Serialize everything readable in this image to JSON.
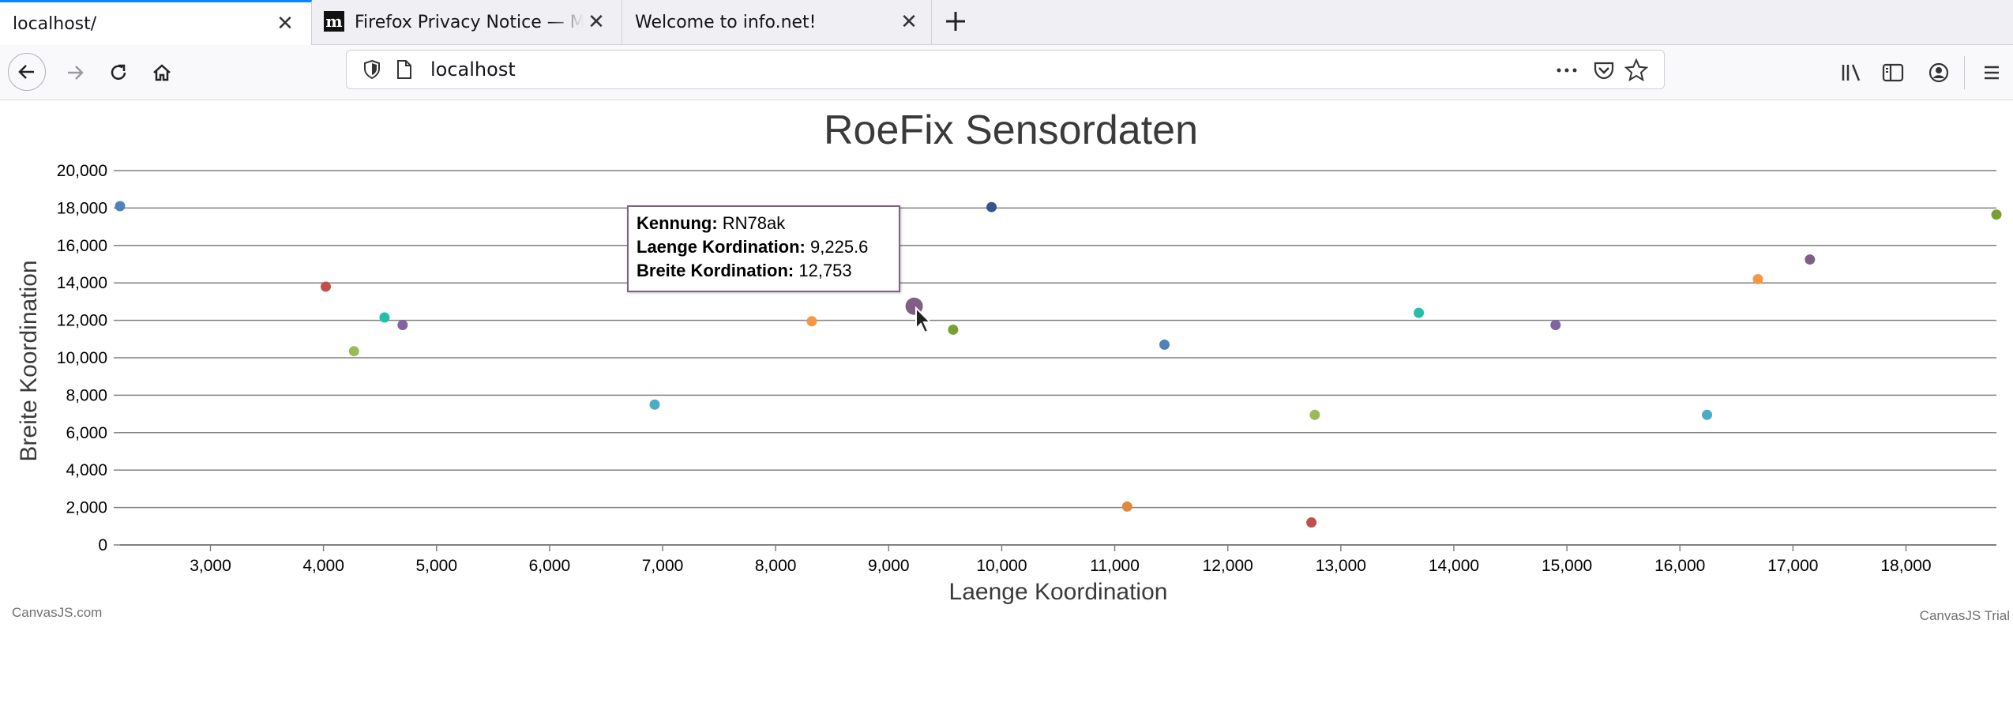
{
  "browser": {
    "tabs": [
      {
        "title": "localhost/",
        "active": true
      },
      {
        "title": "Firefox Privacy Notice — Mozilla",
        "active": false,
        "favicon": "m"
      },
      {
        "title": "Welcome to info.net!",
        "active": false
      }
    ],
    "url": "localhost",
    "icons": [
      "back-arrow-icon",
      "forward-arrow-icon",
      "reload-icon",
      "home-icon",
      "shield-icon",
      "page-icon",
      "more-dots-icon",
      "pocket-icon",
      "star-icon",
      "library-icon",
      "sidebar-icon",
      "account-icon",
      "menu-icon"
    ]
  },
  "chart_data": {
    "type": "scatter",
    "title": "RoeFix Sensordaten",
    "xlabel": "Laenge Koordination",
    "ylabel": "Breite Koordination",
    "xlim": [
      2200,
      18800
    ],
    "ylim": [
      0,
      20000
    ],
    "xticks": [
      "3,000",
      "4,000",
      "5,000",
      "6,000",
      "7,000",
      "8,000",
      "9,000",
      "10,000",
      "11,000",
      "12,000",
      "13,000",
      "14,000",
      "15,000",
      "16,000",
      "17,000",
      "18,000"
    ],
    "xtick_values": [
      3000,
      4000,
      5000,
      6000,
      7000,
      8000,
      9000,
      10000,
      11000,
      12000,
      13000,
      14000,
      15000,
      16000,
      17000,
      18000
    ],
    "yticks": [
      "0",
      "2,000",
      "4,000",
      "6,000",
      "8,000",
      "10,000",
      "12,000",
      "14,000",
      "16,000",
      "18,000",
      "20,000"
    ],
    "ytick_values": [
      0,
      2000,
      4000,
      6000,
      8000,
      10000,
      12000,
      14000,
      16000,
      18000,
      20000
    ],
    "grid": true,
    "points": [
      {
        "x": 2200,
        "y": 18100,
        "color": "#4f81bc"
      },
      {
        "x": 4020,
        "y": 13800,
        "color": "#c0504e"
      },
      {
        "x": 4270,
        "y": 10350,
        "color": "#9bbb58"
      },
      {
        "x": 4540,
        "y": 12150,
        "color": "#23bfaa"
      },
      {
        "x": 4700,
        "y": 11750,
        "color": "#8064a1"
      },
      {
        "x": 6930,
        "y": 7500,
        "color": "#4aacc5"
      },
      {
        "x": 8320,
        "y": 11950,
        "color": "#f79647"
      },
      {
        "x": 9225.6,
        "y": 12753,
        "color": "#7f6084",
        "highlight": true
      },
      {
        "x": 9570,
        "y": 11500,
        "color": "#77a033"
      },
      {
        "x": 9910,
        "y": 18050,
        "color": "#33558b"
      },
      {
        "x": 11110,
        "y": 2050,
        "color": "#e4873e"
      },
      {
        "x": 11440,
        "y": 10700,
        "color": "#4f81bc"
      },
      {
        "x": 12740,
        "y": 1200,
        "color": "#c0504e"
      },
      {
        "x": 12770,
        "y": 6950,
        "color": "#9bbb58"
      },
      {
        "x": 13690,
        "y": 12400,
        "color": "#23bfaa"
      },
      {
        "x": 14900,
        "y": 11750,
        "color": "#8064a1"
      },
      {
        "x": 16240,
        "y": 6950,
        "color": "#4aacc5"
      },
      {
        "x": 16690,
        "y": 14200,
        "color": "#f79647"
      },
      {
        "x": 17150,
        "y": 15250,
        "color": "#7f6084"
      },
      {
        "x": 18800,
        "y": 17650,
        "color": "#77a033"
      }
    ],
    "tooltip": {
      "label_id": "Kennung:",
      "value_id": "RN78ak",
      "label_x": "Laenge Kordination:",
      "value_x": "9,225.6",
      "label_y": "Breite Kordination:",
      "value_y": "12,753"
    },
    "credit_left": "CanvasJS.com",
    "credit_right": "CanvasJS Trial"
  }
}
